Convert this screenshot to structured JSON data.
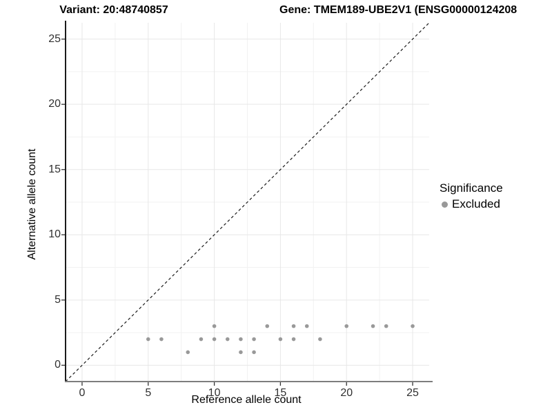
{
  "chart_data": {
    "type": "scatter",
    "title_left": "Variant: 20:48740857",
    "title_right": "Gene: TMEM189-UBE2V1 (ENSG00000124208",
    "xlabel": "Reference allele count",
    "ylabel": "Alternative allele count",
    "xlim": [
      -1.25,
      26.25
    ],
    "ylim": [
      -1.25,
      26.25
    ],
    "xticks": [
      0,
      5,
      10,
      15,
      20,
      25
    ],
    "yticks": [
      0,
      5,
      10,
      15,
      20,
      25
    ],
    "xminor": [
      2.5,
      7.5,
      12.5,
      17.5,
      22.5
    ],
    "yminor": [
      2.5,
      7.5,
      12.5,
      17.5,
      22.5
    ],
    "grid": true,
    "identity_line": {
      "style": "dashed",
      "color": "#1a1a1a"
    },
    "legend": {
      "title": "Significance",
      "position": "right",
      "items": [
        {
          "label": "Excluded",
          "color": "#999999"
        }
      ]
    },
    "series": [
      {
        "name": "Excluded",
        "color": "#999999",
        "points": [
          [
            5,
            2
          ],
          [
            6,
            2
          ],
          [
            8,
            1
          ],
          [
            9,
            2
          ],
          [
            10,
            2
          ],
          [
            10,
            3
          ],
          [
            11,
            2
          ],
          [
            12,
            1
          ],
          [
            12,
            2
          ],
          [
            13,
            1
          ],
          [
            13,
            2
          ],
          [
            14,
            3
          ],
          [
            15,
            2
          ],
          [
            16,
            2
          ],
          [
            16,
            3
          ],
          [
            17,
            3
          ],
          [
            18,
            2
          ],
          [
            20,
            3
          ],
          [
            22,
            3
          ],
          [
            23,
            3
          ],
          [
            25,
            3
          ]
        ]
      }
    ],
    "style": {
      "grid_major_color": "#e7e7e7",
      "grid_minor_color": "#f2f2f2",
      "axis_left_color": "#1a1a1a",
      "axis_bottom_color": "#7d7d7d",
      "tick_color": "#333333"
    }
  }
}
